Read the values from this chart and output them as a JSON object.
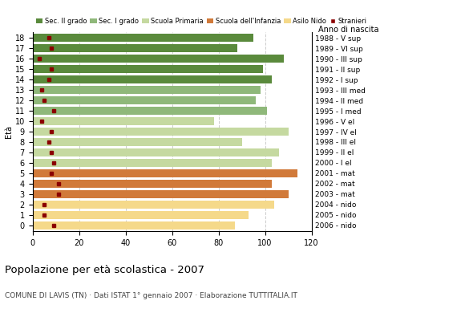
{
  "ages": [
    18,
    17,
    16,
    15,
    14,
    13,
    12,
    11,
    10,
    9,
    8,
    7,
    6,
    5,
    4,
    3,
    2,
    1,
    0
  ],
  "bar_values": [
    95,
    88,
    108,
    99,
    103,
    98,
    96,
    101,
    78,
    110,
    90,
    106,
    103,
    114,
    103,
    110,
    104,
    93,
    87
  ],
  "stranieri": [
    7,
    8,
    3,
    8,
    7,
    4,
    5,
    9,
    4,
    8,
    7,
    8,
    9,
    8,
    11,
    11,
    5,
    5,
    9
  ],
  "bar_colors": [
    "#5a8a3c",
    "#5a8a3c",
    "#5a8a3c",
    "#5a8a3c",
    "#5a8a3c",
    "#8fb87a",
    "#8fb87a",
    "#8fb87a",
    "#c5d9a0",
    "#c5d9a0",
    "#c5d9a0",
    "#c5d9a0",
    "#c5d9a0",
    "#d17a3a",
    "#d17a3a",
    "#d17a3a",
    "#f5d98a",
    "#f5d98a",
    "#f5d98a"
  ],
  "right_labels": [
    "1988 - V sup",
    "1989 - VI sup",
    "1990 - III sup",
    "1991 - II sup",
    "1992 - I sup",
    "1993 - III med",
    "1994 - II med",
    "1995 - I med",
    "1996 - V el",
    "1997 - IV el",
    "1998 - III el",
    "1999 - II el",
    "2000 - I el",
    "2001 - mat",
    "2002 - mat",
    "2003 - mat",
    "2004 - nido",
    "2005 - nido",
    "2006 - nido"
  ],
  "legend_labels": [
    "Sec. II grado",
    "Sec. I grado",
    "Scuola Primaria",
    "Scuola dell'Infanzia",
    "Asilo Nido",
    "Stranieri"
  ],
  "legend_colors": [
    "#5a8a3c",
    "#8fb87a",
    "#c5d9a0",
    "#d17a3a",
    "#f5d98a",
    "#8b0000"
  ],
  "xlabel_left": "Età",
  "xlabel_right": "Anno di nascita",
  "title": "Popolazione per età scolastica - 2007",
  "subtitle": "COMUNE DI LAVIS (TN) · Dati ISTAT 1° gennaio 2007 · Elaborazione TUTTITALIA.IT",
  "xlim": [
    0,
    120
  ],
  "xticks": [
    0,
    20,
    40,
    60,
    80,
    100,
    120
  ],
  "stranieri_color": "#8b0000",
  "grid_color": "#cccccc",
  "bar_height": 0.75
}
